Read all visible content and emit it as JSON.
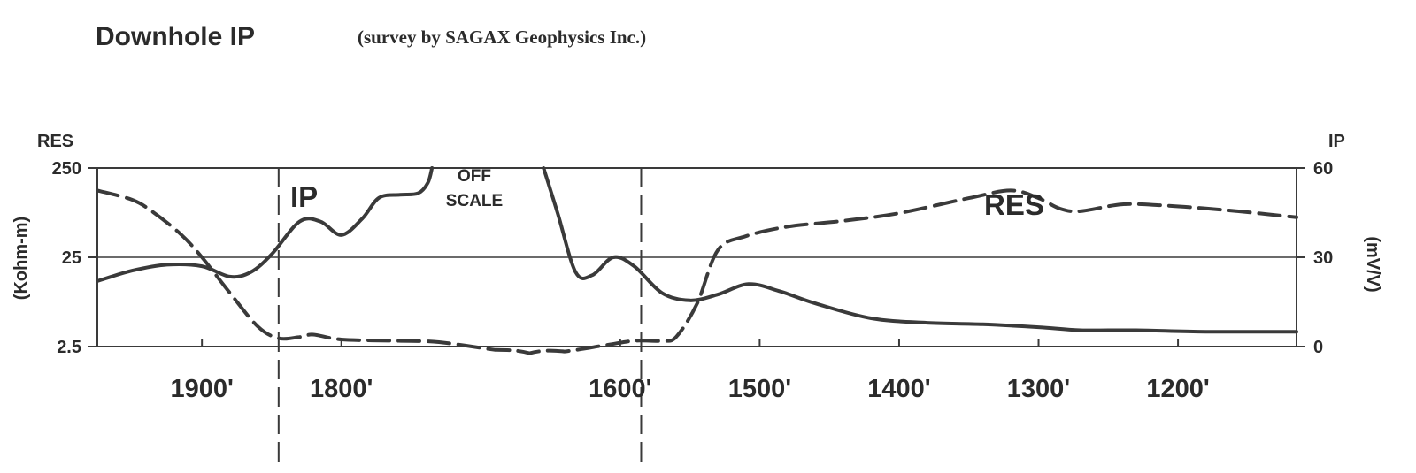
{
  "chart_data": {
    "type": "line",
    "title": "Downhole IP",
    "subtitle": "(survey by SAGAX Geophysics Inc.)",
    "x_axis": {
      "ticks": [
        1900,
        1800,
        1600,
        1500,
        1400,
        1300,
        1200
      ],
      "tick_labels": [
        "1900'",
        "1800'",
        "1600'",
        "1500'",
        "1400'",
        "1300'",
        "1200'"
      ],
      "range": [
        1975,
        1115
      ]
    },
    "y_left": {
      "label_top": "RES",
      "label": "(Kohm-m)",
      "scale": "log",
      "range": [
        2.5,
        250
      ],
      "tick_values": [
        250,
        25,
        2.5
      ],
      "tick_labels": [
        "250",
        "25",
        "2.5"
      ]
    },
    "y_right": {
      "label_top": "IP",
      "label": "(mV/V)",
      "range": [
        0,
        60
      ],
      "tick_values": [
        60,
        30,
        0
      ],
      "tick_labels": [
        "60",
        "30",
        "0"
      ]
    },
    "gridlines": "y at 25 / 30",
    "markers": [
      1845,
      1585
    ],
    "annotations": {
      "ip_label": "IP",
      "res_label": "RES",
      "off_scale_line1": "OFF",
      "off_scale_line2": "SCALE"
    },
    "series": [
      {
        "name": "IP",
        "axis": "right",
        "style": "solid",
        "segments": [
          [
            [
              1975,
              22
            ],
            [
              1950,
              25.5
            ],
            [
              1925,
              27.5
            ],
            [
              1900,
              27
            ],
            [
              1880,
              23.5
            ],
            [
              1865,
              25
            ],
            [
              1850,
              31
            ],
            [
              1830,
              42
            ],
            [
              1815,
              42
            ],
            [
              1800,
              37.5
            ],
            [
              1785,
              43
            ],
            [
              1773,
              50
            ],
            [
              1758,
              51
            ],
            [
              1745,
              51.5
            ],
            [
              1738,
              55
            ],
            [
              1735,
              60
            ]
          ],
          [
            [
              1655,
              60
            ],
            [
              1645,
              45
            ],
            [
              1632,
              25
            ],
            [
              1620,
              24
            ],
            [
              1605,
              30
            ],
            [
              1590,
              27
            ],
            [
              1570,
              18
            ],
            [
              1550,
              15.5
            ],
            [
              1530,
              17.5
            ],
            [
              1508,
              21
            ],
            [
              1485,
              18.5
            ],
            [
              1460,
              14.5
            ],
            [
              1420,
              9.5
            ],
            [
              1380,
              8
            ],
            [
              1340,
              7.5
            ],
            [
              1300,
              6.5
            ],
            [
              1270,
              5.5
            ],
            [
              1230,
              5.5
            ],
            [
              1180,
              5
            ],
            [
              1115,
              5
            ]
          ]
        ]
      },
      {
        "name": "RES",
        "axis": "left",
        "style": "dashed",
        "values": [
          [
            1975,
            140
          ],
          [
            1950,
            110
          ],
          [
            1935,
            80
          ],
          [
            1915,
            45
          ],
          [
            1900,
            25
          ],
          [
            1880,
            10
          ],
          [
            1860,
            4.2
          ],
          [
            1845,
            3.1
          ],
          [
            1830,
            3.2
          ],
          [
            1820,
            3.4
          ],
          [
            1800,
            3.0
          ],
          [
            1760,
            2.9
          ],
          [
            1730,
            2.8
          ],
          [
            1690,
            2.3
          ],
          [
            1665,
            2.1
          ],
          [
            1640,
            2.2
          ],
          [
            1610,
            2.6
          ],
          [
            1590,
            2.9
          ],
          [
            1570,
            2.9
          ],
          [
            1560,
            3.2
          ],
          [
            1545,
            7.5
          ],
          [
            1530,
            30
          ],
          [
            1510,
            43
          ],
          [
            1480,
            55
          ],
          [
            1440,
            64
          ],
          [
            1400,
            78
          ],
          [
            1350,
            115
          ],
          [
            1320,
            140
          ],
          [
            1300,
            115
          ],
          [
            1285,
            88
          ],
          [
            1270,
            82
          ],
          [
            1240,
            98
          ],
          [
            1210,
            95
          ],
          [
            1180,
            88
          ],
          [
            1150,
            80
          ],
          [
            1115,
            70
          ]
        ]
      }
    ]
  }
}
